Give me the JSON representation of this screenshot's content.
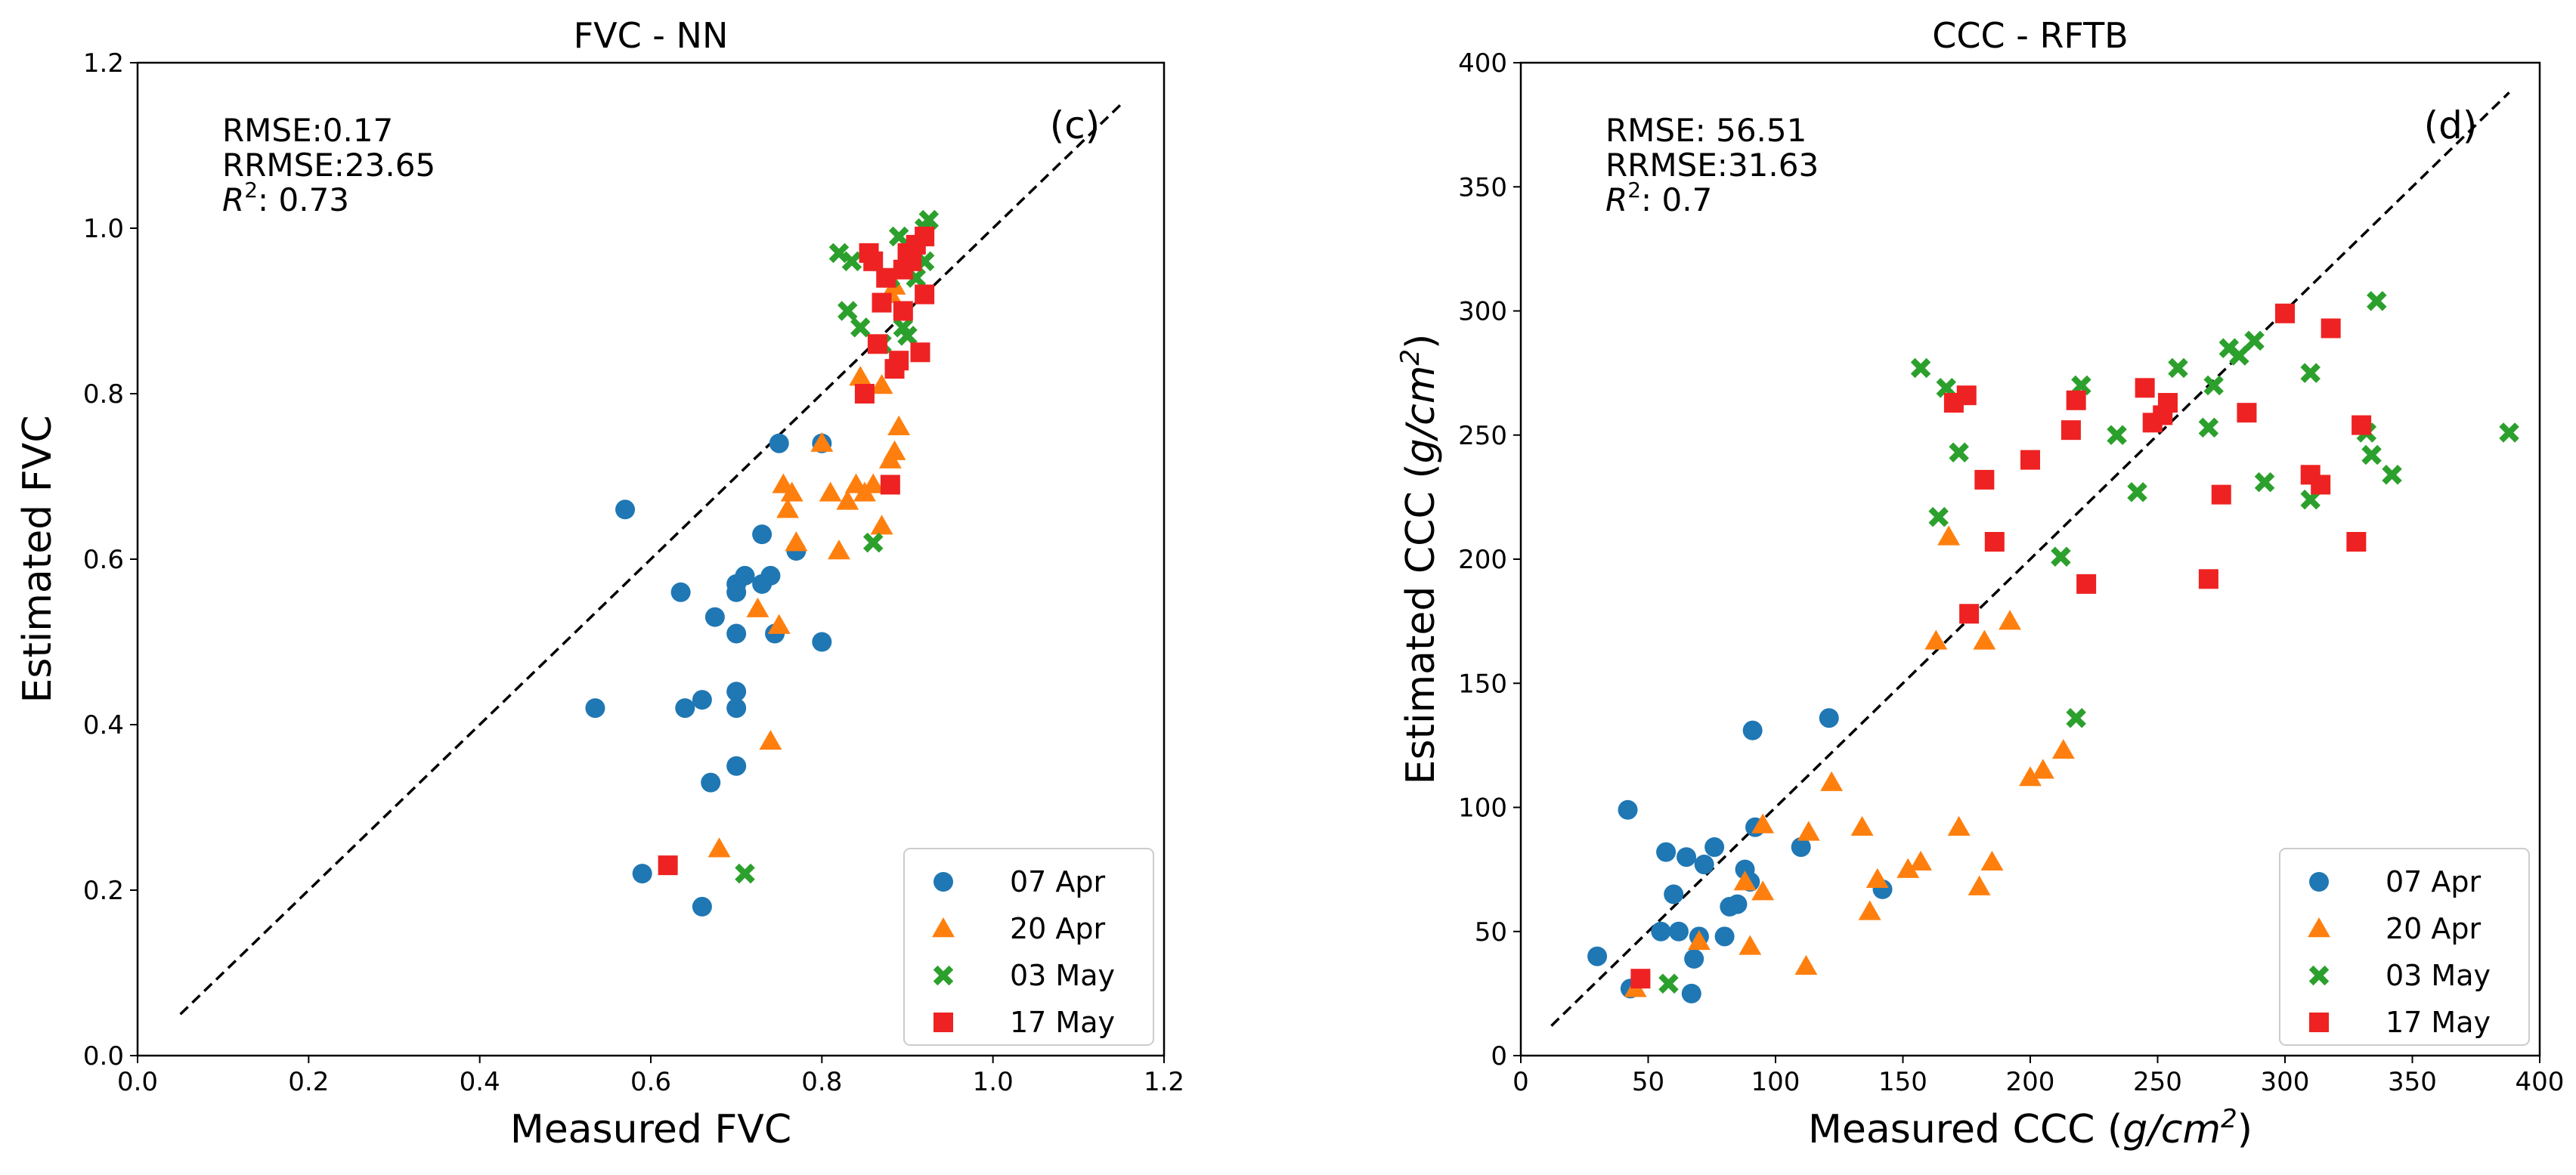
{
  "colors": {
    "07 Apr": "#1f77b4",
    "20 Apr": "#ff7f0e",
    "03 May": "#2ca02c",
    "17 May": "#ee2222"
  },
  "markers": {
    "07 Apr": "circle",
    "20 Apr": "triangle",
    "03 May": "x",
    "17 May": "square"
  },
  "chart_data": [
    {
      "type": "scatter",
      "title": "FVC - NN",
      "xlabel": "Measured FVC",
      "ylabel": "Estimated FVC",
      "xlim": [
        0.0,
        1.2
      ],
      "ylim": [
        0.0,
        1.2
      ],
      "xticks": [
        0.0,
        0.2,
        0.4,
        0.6,
        0.8,
        1.0,
        1.2
      ],
      "yticks": [
        0.0,
        0.2,
        0.4,
        0.6,
        0.8,
        1.0,
        1.2
      ],
      "tick_decimals": 1,
      "panel_label": "(c)",
      "stats": {
        "rmse": "RMSE:0.17",
        "rrmse": "RRMSE:23.65",
        "r2_label": "R",
        "r2_sup": "2",
        "r2_value": ": 0.73"
      },
      "one_to_one": [
        [
          0.05,
          0.05
        ],
        [
          1.15,
          1.15
        ]
      ],
      "legend_position": "lower-right",
      "series": [
        {
          "name": "07 Apr",
          "points": [
            [
              0.57,
              0.66
            ],
            [
              0.535,
              0.42
            ],
            [
              0.59,
              0.22
            ],
            [
              0.635,
              0.56
            ],
            [
              0.64,
              0.42
            ],
            [
              0.66,
              0.43
            ],
            [
              0.66,
              0.18
            ],
            [
              0.67,
              0.33
            ],
            [
              0.675,
              0.53
            ],
            [
              0.7,
              0.57
            ],
            [
              0.7,
              0.56
            ],
            [
              0.7,
              0.51
            ],
            [
              0.7,
              0.44
            ],
            [
              0.7,
              0.42
            ],
            [
              0.7,
              0.35
            ],
            [
              0.71,
              0.58
            ],
            [
              0.73,
              0.57
            ],
            [
              0.73,
              0.63
            ],
            [
              0.74,
              0.58
            ],
            [
              0.745,
              0.51
            ],
            [
              0.75,
              0.74
            ],
            [
              0.77,
              0.61
            ],
            [
              0.8,
              0.5
            ],
            [
              0.8,
              0.74
            ]
          ]
        },
        {
          "name": "20 Apr",
          "points": [
            [
              0.68,
              0.25
            ],
            [
              0.725,
              0.54
            ],
            [
              0.74,
              0.38
            ],
            [
              0.75,
              0.52
            ],
            [
              0.755,
              0.69
            ],
            [
              0.76,
              0.66
            ],
            [
              0.765,
              0.68
            ],
            [
              0.77,
              0.62
            ],
            [
              0.8,
              0.74
            ],
            [
              0.81,
              0.68
            ],
            [
              0.82,
              0.61
            ],
            [
              0.83,
              0.67
            ],
            [
              0.84,
              0.69
            ],
            [
              0.845,
              0.82
            ],
            [
              0.85,
              0.68
            ],
            [
              0.86,
              0.69
            ],
            [
              0.87,
              0.64
            ],
            [
              0.88,
              0.72
            ],
            [
              0.885,
              0.73
            ],
            [
              0.89,
              0.76
            ],
            [
              0.87,
              0.81
            ],
            [
              0.88,
              0.92
            ],
            [
              0.885,
              0.93
            ]
          ]
        },
        {
          "name": "03 May",
          "points": [
            [
              0.71,
              0.22
            ],
            [
              0.82,
              0.97
            ],
            [
              0.83,
              0.9
            ],
            [
              0.835,
              0.96
            ],
            [
              0.845,
              0.88
            ],
            [
              0.86,
              0.62
            ],
            [
              0.87,
              0.86
            ],
            [
              0.88,
              0.94
            ],
            [
              0.89,
              0.99
            ],
            [
              0.895,
              0.88
            ],
            [
              0.9,
              0.87
            ],
            [
              0.905,
              0.96
            ],
            [
              0.91,
              0.94
            ],
            [
              0.92,
              1.0
            ],
            [
              0.925,
              1.01
            ],
            [
              0.92,
              0.96
            ]
          ]
        },
        {
          "name": "17 May",
          "points": [
            [
              0.62,
              0.23
            ],
            [
              0.85,
              0.8
            ],
            [
              0.855,
              0.97
            ],
            [
              0.86,
              0.96
            ],
            [
              0.865,
              0.86
            ],
            [
              0.87,
              0.91
            ],
            [
              0.875,
              0.94
            ],
            [
              0.88,
              0.69
            ],
            [
              0.885,
              0.83
            ],
            [
              0.89,
              0.84
            ],
            [
              0.895,
              0.95
            ],
            [
              0.895,
              0.9
            ],
            [
              0.9,
              0.97
            ],
            [
              0.905,
              0.96
            ],
            [
              0.91,
              0.98
            ],
            [
              0.915,
              0.85
            ],
            [
              0.92,
              0.92
            ],
            [
              0.92,
              0.99
            ]
          ]
        }
      ]
    },
    {
      "type": "scatter",
      "title": "CCC - RFTB",
      "xlabel_main": "Measured CCC (",
      "xlabel_italic": "g/cm",
      "xlabel_sup": "2",
      "xlabel_close": ")",
      "ylabel_main": "Estimated CCC (",
      "ylabel_italic": "g/cm",
      "ylabel_sup": "2",
      "ylabel_close": ")",
      "xlim": [
        0,
        400
      ],
      "ylim": [
        0,
        400
      ],
      "xticks": [
        0,
        50,
        100,
        150,
        200,
        250,
        300,
        350,
        400
      ],
      "yticks": [
        0,
        50,
        100,
        150,
        200,
        250,
        300,
        350,
        400
      ],
      "tick_decimals": 0,
      "panel_label": "(d)",
      "stats": {
        "rmse": "RMSE:  56.51",
        "rrmse": "RRMSE:31.63",
        "r2_label": "R",
        "r2_sup": "2",
        "r2_value": ":  0.7"
      },
      "one_to_one": [
        [
          12,
          12
        ],
        [
          388,
          388
        ]
      ],
      "legend_position": "lower-right",
      "series": [
        {
          "name": "07 Apr",
          "points": [
            [
              30,
              40
            ],
            [
              42,
              99
            ],
            [
              43,
              27
            ],
            [
              55,
              50
            ],
            [
              57,
              82
            ],
            [
              60,
              65
            ],
            [
              62,
              50
            ],
            [
              65,
              80
            ],
            [
              67,
              25
            ],
            [
              68,
              39
            ],
            [
              70,
              48
            ],
            [
              72,
              77
            ],
            [
              76,
              84
            ],
            [
              80,
              48
            ],
            [
              82,
              60
            ],
            [
              85,
              61
            ],
            [
              88,
              75
            ],
            [
              90,
              70
            ],
            [
              91,
              131
            ],
            [
              92,
              92
            ],
            [
              110,
              84
            ],
            [
              121,
              136
            ],
            [
              142,
              67
            ]
          ]
        },
        {
          "name": "20 Apr",
          "points": [
            [
              45,
              27
            ],
            [
              70,
              46
            ],
            [
              88,
              70
            ],
            [
              90,
              44
            ],
            [
              95,
              93
            ],
            [
              95,
              66
            ],
            [
              112,
              36
            ],
            [
              113,
              90
            ],
            [
              122,
              110
            ],
            [
              134,
              92
            ],
            [
              137,
              58
            ],
            [
              140,
              71
            ],
            [
              152,
              75
            ],
            [
              157,
              78
            ],
            [
              163,
              167
            ],
            [
              168,
              209
            ],
            [
              172,
              92
            ],
            [
              180,
              68
            ],
            [
              182,
              167
            ],
            [
              185,
              78
            ],
            [
              192,
              175
            ],
            [
              200,
              112
            ],
            [
              205,
              115
            ],
            [
              213,
              123
            ]
          ]
        },
        {
          "name": "03 May",
          "points": [
            [
              58,
              29
            ],
            [
              157,
              277
            ],
            [
              164,
              217
            ],
            [
              167,
              269
            ],
            [
              172,
              243
            ],
            [
              212,
              201
            ],
            [
              218,
              136
            ],
            [
              220,
              270
            ],
            [
              234,
              250
            ],
            [
              242,
              227
            ],
            [
              258,
              277
            ],
            [
              270,
              253
            ],
            [
              272,
              270
            ],
            [
              278,
              285
            ],
            [
              282,
              282
            ],
            [
              288,
              288
            ],
            [
              292,
              231
            ],
            [
              310,
              275
            ],
            [
              310,
              224
            ],
            [
              332,
              251
            ],
            [
              334,
              242
            ],
            [
              336,
              304
            ],
            [
              342,
              234
            ],
            [
              388,
              251
            ]
          ]
        },
        {
          "name": "17 May",
          "points": [
            [
              47,
              31
            ],
            [
              170,
              263
            ],
            [
              175,
              266
            ],
            [
              176,
              178
            ],
            [
              182,
              232
            ],
            [
              186,
              207
            ],
            [
              200,
              240
            ],
            [
              216,
              252
            ],
            [
              218,
              264
            ],
            [
              222,
              190
            ],
            [
              245,
              269
            ],
            [
              248,
              255
            ],
            [
              252,
              258
            ],
            [
              254,
              263
            ],
            [
              270,
              192
            ],
            [
              275,
              226
            ],
            [
              285,
              259
            ],
            [
              300,
              299
            ],
            [
              310,
              234
            ],
            [
              314,
              230
            ],
            [
              318,
              293
            ],
            [
              328,
              207
            ],
            [
              330,
              254
            ]
          ]
        }
      ]
    }
  ]
}
